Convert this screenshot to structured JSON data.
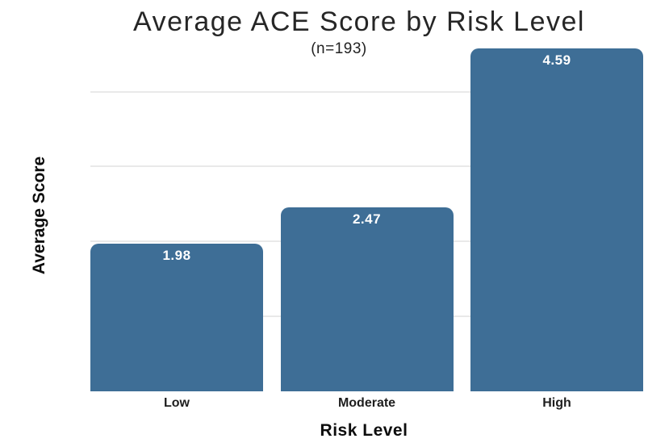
{
  "chart_data": {
    "type": "bar",
    "title": "Average ACE Score by Risk Level",
    "subtitle": "(n=193)",
    "categories": [
      "Low",
      "Moderate",
      "High"
    ],
    "values": [
      1.98,
      2.47,
      4.59
    ],
    "value_labels": [
      "1.98",
      "2.47",
      "4.59"
    ],
    "xlabel": "Risk Level",
    "ylabel": "Average Score",
    "ylim": [
      0,
      5
    ],
    "gridline_values": [
      1,
      2,
      3,
      4
    ],
    "grid": "horizontal-only, no y tick labels, no axis lines",
    "legend_position": "none",
    "colors": {
      "bar": "#3e6e96",
      "value_label": "#ffffff",
      "gridline": "#e9e9e9",
      "background": "#ffffff",
      "title_text": "#262626",
      "axis_text": "#0d0d0d"
    }
  }
}
